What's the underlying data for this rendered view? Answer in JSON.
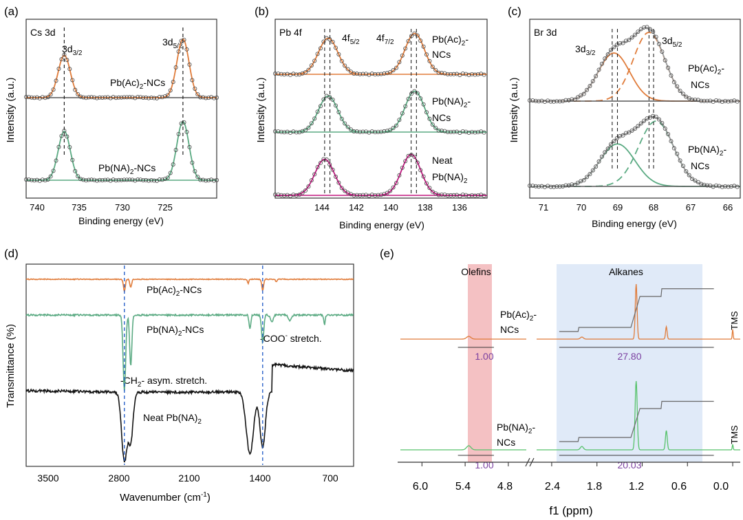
{
  "panels": {
    "a": {
      "label": "(a)",
      "element": "Cs 3d",
      "xlabel": "Binding energy (eV)",
      "ylabel": "Intensity (a.u.)",
      "xticks": [
        "740",
        "735",
        "730",
        "725"
      ],
      "peak1": "3d",
      "peak1_sub": "3/2",
      "peak2": "3d",
      "peak2_sub": "5/2",
      "trace1": "Pb(Ac)",
      "trace1_sub": "2",
      "trace1_tail": "-NCs",
      "trace2": "Pb(NA)",
      "trace2_sub": "2",
      "trace2_tail": "-NCs"
    },
    "b": {
      "label": "(b)",
      "element": "Pb 4f",
      "xlabel": "Binding energy (eV)",
      "ylabel": "Intensity (a.u.)",
      "xticks": [
        "144",
        "142",
        "140",
        "138",
        "136"
      ],
      "peak1": "4f",
      "peak1_sub": "5/2",
      "peak2": "4f",
      "peak2_sub": "7/2",
      "t1_line1": "Pb(Ac)",
      "t1_sub": "2",
      "t1_tail": "-",
      "t1_line2": "NCs",
      "t2_line1": "Pb(NA)",
      "t2_sub": "2",
      "t2_tail": "-",
      "t2_line2": "NCs",
      "t3_line1": "Neat",
      "t3_line2": "Pb(NA)",
      "t3_sub": "2"
    },
    "c": {
      "label": "(c)",
      "element": "Br 3d",
      "xlabel": "Binding energy (eV)",
      "ylabel": "Intensity (a.u.)",
      "xticks": [
        "71",
        "70",
        "69",
        "68",
        "67",
        "66"
      ],
      "peak1": "3d",
      "peak1_sub": "3/2",
      "peak2": "3d",
      "peak2_sub": "5/2",
      "t1_line1": "Pb(Ac)",
      "t1_sub": "2",
      "t1_tail": "-",
      "t1_line2": "NCs",
      "t2_line1": "Pb(NA)",
      "t2_sub": "2",
      "t2_tail": "-",
      "t2_line2": "NCs"
    },
    "d": {
      "label": "(d)",
      "xlabel": "Wavenumber (cm",
      "xlabel_sup": "-1",
      "xlabel_tail": ")",
      "ylabel": "Transmittance (%)",
      "xticks": [
        "3500",
        "2800",
        "2100",
        "1400",
        "700"
      ],
      "trace1": "Pb(Ac)",
      "trace1_sub": "2",
      "trace1_tail": "-NCs",
      "trace2": "Pb(NA)",
      "trace2_sub": "2",
      "trace2_tail": "-NCs",
      "trace3": "Neat Pb(NA)",
      "trace3_sub": "2",
      "ann1": "-CH",
      "ann1_sub": "2",
      "ann1_tail": "- asym. stretch.",
      "ann2": "-COO",
      "ann2_sup": "-",
      "ann2_tail": " stretch."
    },
    "e": {
      "label": "(e)",
      "xlabel": "f1 (ppm)",
      "xticks": [
        "6.0",
        "5.4",
        "4.8",
        "2.4",
        "1.8",
        "1.2",
        "0.6",
        "0.0"
      ],
      "region1": "Olefins",
      "region2": "Alkanes",
      "t1_line1": "Pb(Ac)",
      "t1_sub": "2",
      "t1_tail": "-",
      "t1_line2": "NCs",
      "t2_line1": "Pb(NA)",
      "t2_sub": "2",
      "t2_tail": "-",
      "t2_line2": "NCs",
      "tms": "TMS",
      "int_olefin_top": "1.00",
      "int_alkane_top": "27.80",
      "int_olefin_bottom": "1.00",
      "int_alkane_bottom": "20.03"
    }
  },
  "colors": {
    "orange": "#e07b39",
    "green": "#5aaa82",
    "gray": "#555555",
    "black": "#111111",
    "magenta": "#c0177f",
    "blue_dash": "#2a62c9",
    "purple": "#7a3fa0",
    "olefin_fill": "#f2b6b8",
    "alkane_fill": "#dde8f7",
    "nmr_green": "#56c26a"
  },
  "chart_data": [
    {
      "type": "line",
      "panel": "a",
      "title": "Cs 3d",
      "xlabel": "Binding energy (eV)",
      "ylabel": "Intensity (a.u.)",
      "xlim": [
        742,
        720
      ],
      "x_reversed": true,
      "series": [
        {
          "name": "Pb(Ac)2-NCs",
          "peaks_eV": [
            737.6,
            723.9
          ],
          "heights": [
            0.65,
            0.9
          ]
        },
        {
          "name": "Pb(NA)2-NCs",
          "peaks_eV": [
            737.6,
            723.9
          ],
          "heights": [
            0.75,
            0.9
          ]
        }
      ]
    },
    {
      "type": "line",
      "panel": "b",
      "title": "Pb 4f",
      "xlabel": "Binding energy (eV)",
      "ylabel": "Intensity (a.u.)",
      "xlim": [
        146,
        134
      ],
      "x_reversed": true,
      "series": [
        {
          "name": "Pb(Ac)2-NCs",
          "peaks_eV": [
            143.0,
            138.1
          ],
          "heights": [
            0.75,
            0.85
          ]
        },
        {
          "name": "Pb(NA)2-NCs",
          "peaks_eV": [
            143.0,
            138.1
          ],
          "heights": [
            0.75,
            0.85
          ]
        },
        {
          "name": "Neat Pb(NA)2",
          "peaks_eV": [
            143.2,
            138.3
          ],
          "heights": [
            0.75,
            0.85
          ]
        }
      ]
    },
    {
      "type": "line",
      "panel": "c",
      "title": "Br 3d",
      "xlabel": "Binding energy (eV)",
      "ylabel": "Intensity (a.u.)",
      "xlim": [
        71.5,
        65.5
      ],
      "x_reversed": true,
      "series": [
        {
          "name": "Pb(Ac)2-NCs",
          "peaks_eV": [
            69.1,
            68.1
          ],
          "heights": [
            0.7,
            1.0
          ]
        },
        {
          "name": "Pb(NA)2-NCs",
          "peaks_eV": [
            69.0,
            67.9
          ],
          "heights": [
            0.65,
            1.0
          ]
        }
      ]
    },
    {
      "type": "line",
      "panel": "d",
      "xlabel": "Wavenumber (cm-1)",
      "ylabel": "Transmittance (%)",
      "xlim": [
        4000,
        400
      ],
      "x_reversed": true,
      "markers_cm1": [
        2920,
        1400
      ],
      "series": [
        {
          "name": "Pb(Ac)2-NCs",
          "bands_cm1": [
            2920,
            2850,
            1400
          ]
        },
        {
          "name": "Pb(NA)2-NCs",
          "bands_cm1": [
            2920,
            2850,
            1400,
            1540
          ]
        },
        {
          "name": "Neat Pb(NA)2",
          "bands_cm1": [
            2920,
            2850,
            1540,
            1400
          ]
        }
      ]
    },
    {
      "type": "line",
      "panel": "e",
      "xlabel": "f1 (ppm)",
      "x_reversed": true,
      "regions": [
        {
          "name": "Olefins",
          "ppm": [
            5.5,
            5.0
          ]
        },
        {
          "name": "Alkanes",
          "ppm": [
            2.3,
            0.25
          ]
        }
      ],
      "series": [
        {
          "name": "Pb(Ac)2-NCs",
          "integrals": {
            "Olefins": 1.0,
            "Alkanes": 27.8
          }
        },
        {
          "name": "Pb(NA)2-NCs",
          "integrals": {
            "Olefins": 1.0,
            "Alkanes": 20.03
          }
        }
      ]
    }
  ]
}
